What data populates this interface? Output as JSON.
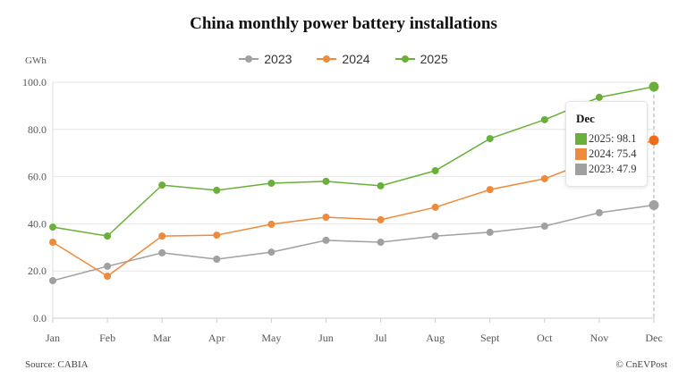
{
  "chart_data": {
    "type": "line",
    "title": "China monthly power battery installations",
    "ylabel": "GWh",
    "categories": [
      "Jan",
      "Feb",
      "Mar",
      "Apr",
      "May",
      "Jun",
      "Jul",
      "Aug",
      "Sept",
      "Oct",
      "Nov",
      "Dec"
    ],
    "ylim": [
      0,
      100
    ],
    "yticks": [
      "0.0",
      "20.0",
      "40.0",
      "60.0",
      "80.0",
      "100.0"
    ],
    "grid": true,
    "legend_position": "top",
    "series": [
      {
        "name": "2023",
        "color": "#a0a0a0",
        "values": [
          15.9,
          22.0,
          27.7,
          25.0,
          28.0,
          33.0,
          32.2,
          34.8,
          36.4,
          39.0,
          44.7,
          47.9
        ]
      },
      {
        "name": "2024",
        "color": "#ee8a3c",
        "values": [
          32.2,
          17.8,
          34.8,
          35.2,
          39.8,
          42.8,
          41.7,
          47.0,
          54.5,
          59.1,
          68.0,
          75.4
        ]
      },
      {
        "name": "2025",
        "color": "#6aaf3a",
        "values": [
          38.6,
          34.8,
          56.4,
          54.2,
          57.2,
          58.0,
          56.1,
          62.5,
          76.1,
          84.1,
          93.6,
          98.1
        ]
      }
    ],
    "tooltip": {
      "title": "Dec",
      "rows": [
        "2025: 98.1",
        "2024: 75.4",
        "2023: 47.9"
      ]
    }
  },
  "footer": {
    "source": "Source: CABIA",
    "copyright": "© CnEVPost"
  }
}
